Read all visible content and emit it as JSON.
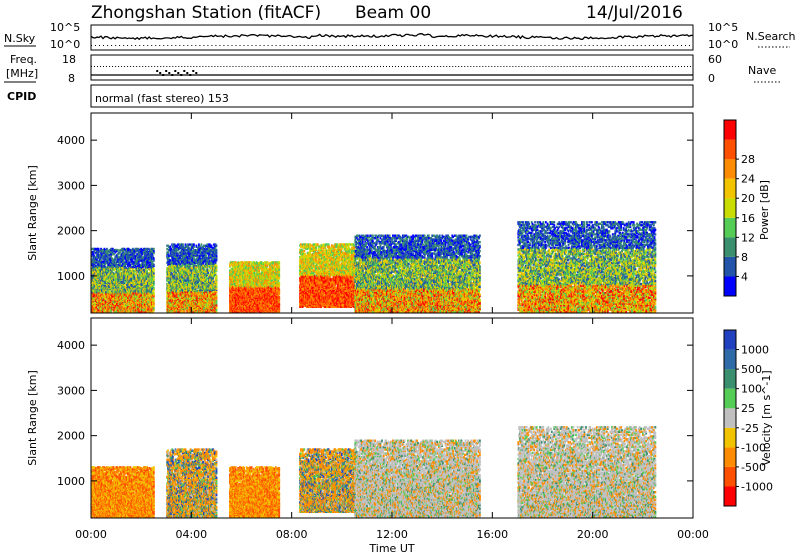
{
  "header": {
    "station": "Zhongshan Station (fitACF)",
    "beam": "Beam 00",
    "date": "14/Jul/2016"
  },
  "strips": {
    "nsky_label": "N.Sky",
    "nsearch_label": "N.Search",
    "freq_label": "Freq.",
    "freq_unit": "[MHz]",
    "nave_label": "Nave",
    "cpid_label": "CPID",
    "noise_ticks": [
      "10^5",
      "10^0"
    ],
    "noise_ticks_right": [
      "10^5",
      "10^0"
    ],
    "freq_ticks": [
      "18",
      "8"
    ],
    "nave_ticks": [
      "60",
      "0"
    ],
    "cpid_text": "normal (fast stereo) 153"
  },
  "colors": {
    "power_scale": [
      "#0000ff",
      "#2255aa",
      "#3a8f6e",
      "#55cc55",
      "#c8dc00",
      "#f2c400",
      "#ff8c00",
      "#ff5000",
      "#ff0000"
    ],
    "velocity_scale": [
      "#2040c0",
      "#2f6aa8",
      "#3a8f6e",
      "#55cc55",
      "#c0c0c0",
      "#f2c400",
      "#ff8c00",
      "#ff5000",
      "#ff0000"
    ]
  },
  "chart_data": [
    {
      "type": "heatmap",
      "title": "",
      "xlabel": "Time UT",
      "ylabel": "Slant Range [km]",
      "x_ticks": [
        "00:00",
        "04:00",
        "08:00",
        "12:00",
        "16:00",
        "20:00",
        "00:00"
      ],
      "xlim_hours": [
        0,
        24
      ],
      "y_ticks": [
        "1000",
        "2000",
        "3000",
        "4000"
      ],
      "ylim_km": [
        180,
        4600
      ],
      "colorbar_label": "Power [dB]",
      "colorbar_ticks": [
        "4",
        "8",
        "12",
        "16",
        "20",
        "24",
        "28"
      ],
      "scatter_regions": [
        {
          "t_start": 0.0,
          "t_end": 2.5,
          "r_min": 200,
          "r_max": 1600,
          "level": "mixed"
        },
        {
          "t_start": 3.0,
          "t_end": 5.0,
          "r_min": 200,
          "r_max": 1700,
          "level": "mixed"
        },
        {
          "t_start": 5.5,
          "t_end": 7.5,
          "r_min": 200,
          "r_max": 1300,
          "level": "high"
        },
        {
          "t_start": 8.3,
          "t_end": 10.5,
          "r_min": 300,
          "r_max": 1700,
          "level": "high"
        },
        {
          "t_start": 10.5,
          "t_end": 15.5,
          "r_min": 200,
          "r_max": 1900,
          "level": "mixed"
        },
        {
          "t_start": 17.0,
          "t_end": 22.5,
          "r_min": 200,
          "r_max": 2200,
          "level": "mixed"
        }
      ]
    },
    {
      "type": "heatmap",
      "title": "",
      "xlabel": "Time UT",
      "ylabel": "Slant Range [km]",
      "x_ticks": [
        "00:00",
        "04:00",
        "08:00",
        "12:00",
        "16:00",
        "20:00",
        "00:00"
      ],
      "xlim_hours": [
        0,
        24
      ],
      "y_ticks": [
        "1000",
        "2000",
        "3000",
        "4000"
      ],
      "ylim_km": [
        180,
        4600
      ],
      "colorbar_label": "Velocity [m s^-1]",
      "colorbar_ticks": [
        "1000",
        "500",
        "100",
        "25",
        "-25",
        "-100",
        "-500",
        "-1000"
      ],
      "scatter_regions": [
        {
          "t_start": 0.0,
          "t_end": 2.5,
          "r_min": 200,
          "r_max": 1300,
          "level": "negative"
        },
        {
          "t_start": 3.0,
          "t_end": 5.0,
          "r_min": 200,
          "r_max": 1700,
          "level": "mixed"
        },
        {
          "t_start": 5.5,
          "t_end": 7.5,
          "r_min": 200,
          "r_max": 1300,
          "level": "negative"
        },
        {
          "t_start": 8.3,
          "t_end": 10.5,
          "r_min": 300,
          "r_max": 1700,
          "level": "mixed"
        },
        {
          "t_start": 10.5,
          "t_end": 15.5,
          "r_min": 200,
          "r_max": 1900,
          "level": "ground"
        },
        {
          "t_start": 17.0,
          "t_end": 22.5,
          "r_min": 200,
          "r_max": 2200,
          "level": "ground"
        }
      ]
    }
  ]
}
